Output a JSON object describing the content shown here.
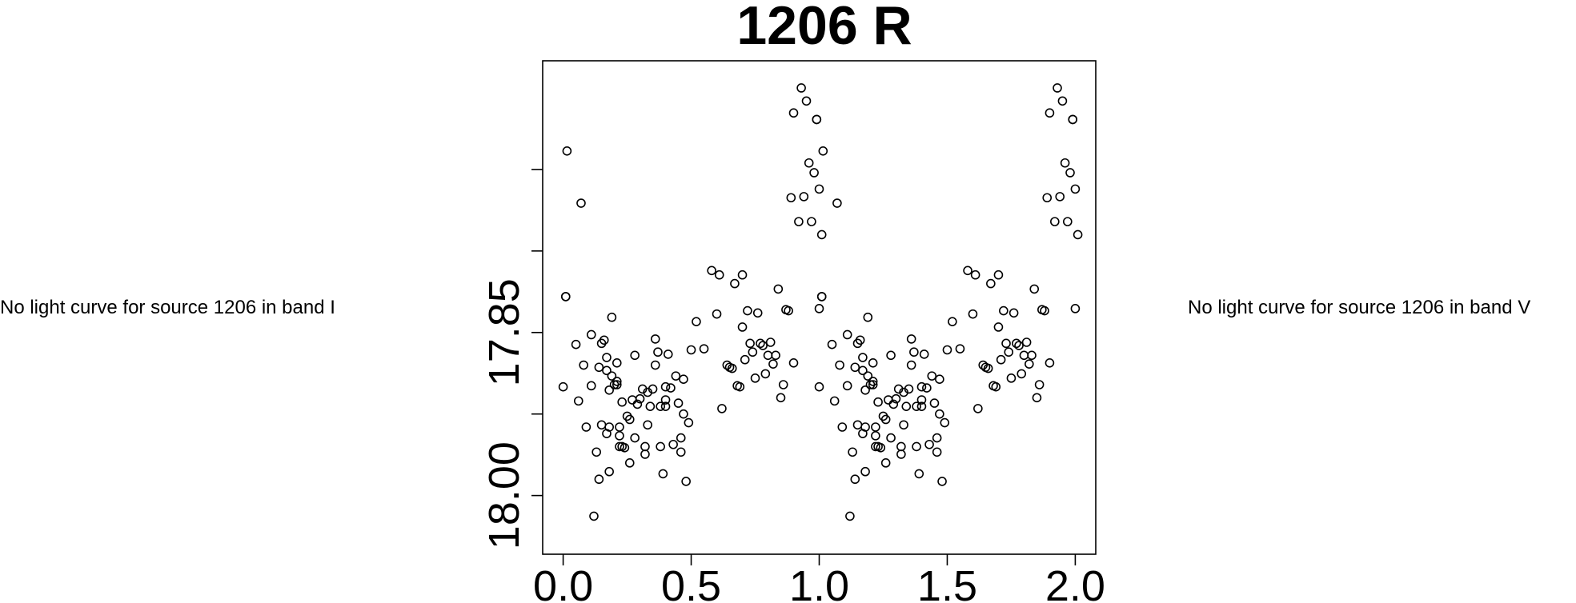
{
  "notes": {
    "left": "No light curve for source 1206 in band I",
    "right": "No light curve for source 1206 in band V"
  },
  "chart_data": {
    "type": "scatter",
    "title": "1206 R",
    "xlabel": "",
    "ylabel": "",
    "xlim": [
      -0.08,
      2.08
    ],
    "ylim": [
      18.054,
      17.6
    ],
    "y_inverted": true,
    "x_ticks": [
      0.0,
      0.5,
      1.0,
      1.5,
      2.0
    ],
    "x_tick_labels": [
      "0.0",
      "0.5",
      "1.0",
      "1.5",
      "2.0"
    ],
    "y_ticks": [
      17.7,
      17.775,
      17.85,
      17.925,
      18.0
    ],
    "y_tick_labels": [
      "",
      "",
      "17.85",
      "",
      "18.00"
    ],
    "grid": false,
    "legend": "none",
    "marker": "open-circle",
    "series": [
      {
        "points": [
          [
            0.0,
            17.9
          ],
          [
            0.01,
            17.817
          ],
          [
            0.01,
            17.817
          ],
          [
            0.015,
            17.683
          ],
          [
            0.05,
            17.861
          ],
          [
            0.06,
            17.913
          ],
          [
            0.07,
            17.731
          ],
          [
            0.08,
            17.88
          ],
          [
            0.09,
            17.937
          ],
          [
            0.11,
            17.899
          ],
          [
            0.11,
            17.852
          ],
          [
            0.12,
            18.019
          ],
          [
            0.13,
            17.96
          ],
          [
            0.14,
            17.882
          ],
          [
            0.14,
            17.985
          ],
          [
            0.15,
            17.86
          ],
          [
            0.15,
            17.935
          ],
          [
            0.16,
            17.857
          ],
          [
            0.17,
            17.873
          ],
          [
            0.17,
            17.885
          ],
          [
            0.17,
            17.943
          ],
          [
            0.18,
            17.937
          ],
          [
            0.18,
            17.978
          ],
          [
            0.18,
            17.903
          ],
          [
            0.19,
            17.836
          ],
          [
            0.19,
            17.89
          ],
          [
            0.2,
            17.898
          ],
          [
            0.21,
            17.895
          ],
          [
            0.21,
            17.878
          ],
          [
            0.21,
            17.898
          ],
          [
            0.22,
            17.937
          ],
          [
            0.22,
            17.955
          ],
          [
            0.22,
            17.945
          ],
          [
            0.23,
            17.914
          ],
          [
            0.23,
            17.955
          ],
          [
            0.24,
            17.956
          ],
          [
            0.25,
            17.927
          ],
          [
            0.26,
            17.93
          ],
          [
            0.26,
            17.97
          ],
          [
            0.27,
            17.912
          ],
          [
            0.28,
            17.871
          ],
          [
            0.28,
            17.947
          ],
          [
            0.29,
            17.916
          ],
          [
            0.3,
            17.911
          ],
          [
            0.31,
            17.902
          ],
          [
            0.32,
            17.955
          ],
          [
            0.32,
            17.962
          ],
          [
            0.33,
            17.905
          ],
          [
            0.33,
            17.935
          ],
          [
            0.34,
            17.918
          ],
          [
            0.35,
            17.902
          ],
          [
            0.36,
            17.88
          ],
          [
            0.36,
            17.856
          ],
          [
            0.37,
            17.868
          ],
          [
            0.38,
            17.955
          ],
          [
            0.38,
            17.918
          ],
          [
            0.39,
            17.98
          ],
          [
            0.4,
            17.9
          ],
          [
            0.4,
            17.912
          ],
          [
            0.4,
            17.918
          ],
          [
            0.41,
            17.87
          ],
          [
            0.42,
            17.901
          ],
          [
            0.43,
            17.953
          ],
          [
            0.44,
            17.89
          ],
          [
            0.45,
            17.915
          ],
          [
            0.46,
            17.96
          ],
          [
            0.46,
            17.947
          ],
          [
            0.47,
            17.893
          ],
          [
            0.47,
            17.925
          ],
          [
            0.48,
            17.987
          ],
          [
            0.49,
            17.933
          ],
          [
            0.5,
            17.866
          ],
          [
            0.52,
            17.84
          ],
          [
            0.55,
            17.865
          ],
          [
            0.58,
            17.793
          ],
          [
            0.6,
            17.833
          ],
          [
            0.61,
            17.797
          ],
          [
            0.62,
            17.92
          ],
          [
            0.64,
            17.88
          ],
          [
            0.65,
            17.882
          ],
          [
            0.66,
            17.883
          ],
          [
            0.67,
            17.805
          ],
          [
            0.68,
            17.899
          ],
          [
            0.69,
            17.9
          ],
          [
            0.7,
            17.845
          ],
          [
            0.7,
            17.797
          ],
          [
            0.71,
            17.875
          ],
          [
            0.72,
            17.83
          ],
          [
            0.73,
            17.86
          ],
          [
            0.74,
            17.868
          ],
          [
            0.75,
            17.892
          ],
          [
            0.76,
            17.832
          ],
          [
            0.77,
            17.86
          ],
          [
            0.78,
            17.862
          ],
          [
            0.79,
            17.888
          ],
          [
            0.8,
            17.871
          ],
          [
            0.81,
            17.859
          ],
          [
            0.82,
            17.879
          ],
          [
            0.83,
            17.871
          ],
          [
            0.84,
            17.81
          ],
          [
            0.85,
            17.91
          ],
          [
            0.86,
            17.898
          ],
          [
            0.87,
            17.829
          ],
          [
            0.88,
            17.83
          ],
          [
            0.89,
            17.726
          ],
          [
            0.9,
            17.878
          ],
          [
            0.9,
            17.648
          ],
          [
            0.92,
            17.748
          ],
          [
            0.93,
            17.625
          ],
          [
            0.94,
            17.725
          ],
          [
            0.95,
            17.637
          ],
          [
            0.96,
            17.694
          ],
          [
            0.97,
            17.748
          ],
          [
            0.98,
            17.703
          ],
          [
            0.99,
            17.654
          ],
          [
            0.99,
            17.654
          ],
          [
            1.0,
            17.718
          ],
          [
            1.0,
            17.828
          ],
          [
            1.01,
            17.76
          ]
        ]
      }
    ]
  }
}
